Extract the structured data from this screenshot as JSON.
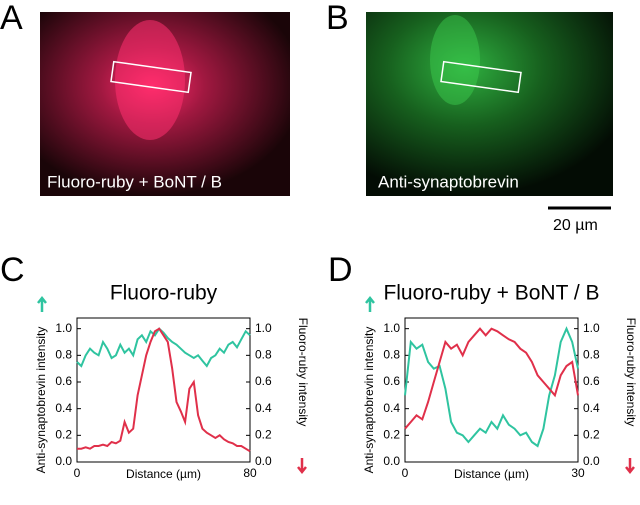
{
  "images": [
    {
      "label": "A",
      "caption": "Fluoro-ruby + BoNT / B"
    },
    {
      "label": "B",
      "caption": "Anti-synaptobrevin"
    }
  ],
  "scale_bar": "20 µm",
  "chart_data": [
    {
      "type": "line",
      "panel": "C",
      "title": "Fluoro-ruby",
      "xlabel": "Distance (µm)",
      "ylabel": "Anti-synaptobrevin intensity",
      "y2label": "Fluoro-ruby intensity",
      "x": [
        0,
        2,
        4,
        6,
        8,
        10,
        12,
        14,
        16,
        18,
        20,
        22,
        24,
        26,
        28,
        30,
        32,
        34,
        36,
        38,
        40,
        42,
        44,
        46,
        48,
        50,
        52,
        54,
        56,
        58,
        60,
        62,
        64,
        66,
        68,
        70,
        72,
        74,
        76,
        78,
        80
      ],
      "xlim": [
        0,
        80
      ],
      "xticks": [
        0,
        80
      ],
      "ylim": [
        0,
        1.08
      ],
      "yticks": [
        {
          "value": 0,
          "label": "0.0"
        },
        0.2,
        0.4,
        0.6,
        0.8,
        {
          "value": 1,
          "label": "1.0"
        }
      ],
      "y2lim": [
        0,
        1.08
      ],
      "y2ticks": [
        {
          "value": 0,
          "label": "0.0"
        },
        0.2,
        0.4,
        0.6,
        0.8,
        {
          "value": 1,
          "label": "1.0"
        }
      ],
      "series": [
        {
          "color": "#2fc4a0",
          "values": [
            0.75,
            0.72,
            0.8,
            0.85,
            0.82,
            0.8,
            0.9,
            0.85,
            0.78,
            0.8,
            0.88,
            0.82,
            0.85,
            0.8,
            0.92,
            0.95,
            0.9,
            0.98,
            0.95,
            1.0,
            0.97,
            0.93,
            0.9,
            0.88,
            0.85,
            0.82,
            0.8,
            0.78,
            0.8,
            0.76,
            0.72,
            0.78,
            0.8,
            0.85,
            0.82,
            0.88,
            0.9,
            0.86,
            0.92,
            0.98,
            0.95
          ]
        },
        {
          "color": "#e0304a",
          "axis": "y2",
          "values": [
            0.1,
            0.1,
            0.11,
            0.1,
            0.12,
            0.12,
            0.13,
            0.12,
            0.15,
            0.14,
            0.16,
            0.3,
            0.22,
            0.25,
            0.5,
            0.65,
            0.8,
            0.9,
            0.98,
            1.0,
            0.95,
            0.9,
            0.7,
            0.45,
            0.38,
            0.3,
            0.55,
            0.6,
            0.35,
            0.25,
            0.22,
            0.2,
            0.18,
            0.2,
            0.17,
            0.15,
            0.14,
            0.12,
            0.12,
            0.1,
            0.08
          ]
        }
      ]
    },
    {
      "type": "line",
      "panel": "D",
      "title": "Fluoro-ruby + BoNT / B",
      "xlabel": "Distance (µm)",
      "ylabel": "Anti-synaptobrevin intensity",
      "y2label": "Fluoro-ruby intensity",
      "x": [
        0,
        1,
        2,
        3,
        4,
        5,
        6,
        7,
        8,
        9,
        10,
        11,
        12,
        13,
        14,
        15,
        16,
        17,
        18,
        19,
        20,
        21,
        22,
        23,
        24,
        25,
        26,
        27,
        28,
        29,
        30
      ],
      "xlim": [
        0,
        30
      ],
      "xticks": [
        0,
        30
      ],
      "ylim": [
        0,
        1.08
      ],
      "yticks": [
        {
          "value": 0,
          "label": "0.0"
        },
        0.2,
        0.4,
        0.6,
        0.8,
        {
          "value": 1,
          "label": "1.0"
        }
      ],
      "y2lim": [
        0,
        1.08
      ],
      "y2ticks": [
        {
          "value": 0,
          "label": "0.0"
        },
        0.2,
        0.4,
        0.6,
        0.8,
        {
          "value": 1,
          "label": "1.0"
        }
      ],
      "series": [
        {
          "color": "#2fc4a0",
          "values": [
            0.5,
            0.9,
            0.85,
            0.88,
            0.75,
            0.7,
            0.72,
            0.55,
            0.3,
            0.22,
            0.2,
            0.15,
            0.2,
            0.25,
            0.22,
            0.3,
            0.25,
            0.35,
            0.28,
            0.25,
            0.2,
            0.22,
            0.15,
            0.12,
            0.25,
            0.5,
            0.65,
            0.9,
            1.0,
            0.9,
            0.7
          ]
        },
        {
          "color": "#e0304a",
          "axis": "y2",
          "values": [
            0.25,
            0.3,
            0.35,
            0.32,
            0.45,
            0.6,
            0.75,
            0.9,
            0.85,
            0.88,
            0.8,
            0.9,
            0.95,
            1.0,
            0.95,
            1.0,
            0.98,
            0.95,
            0.92,
            0.9,
            0.85,
            0.82,
            0.75,
            0.65,
            0.6,
            0.55,
            0.5,
            0.65,
            0.72,
            0.75,
            0.5
          ]
        }
      ]
    }
  ]
}
